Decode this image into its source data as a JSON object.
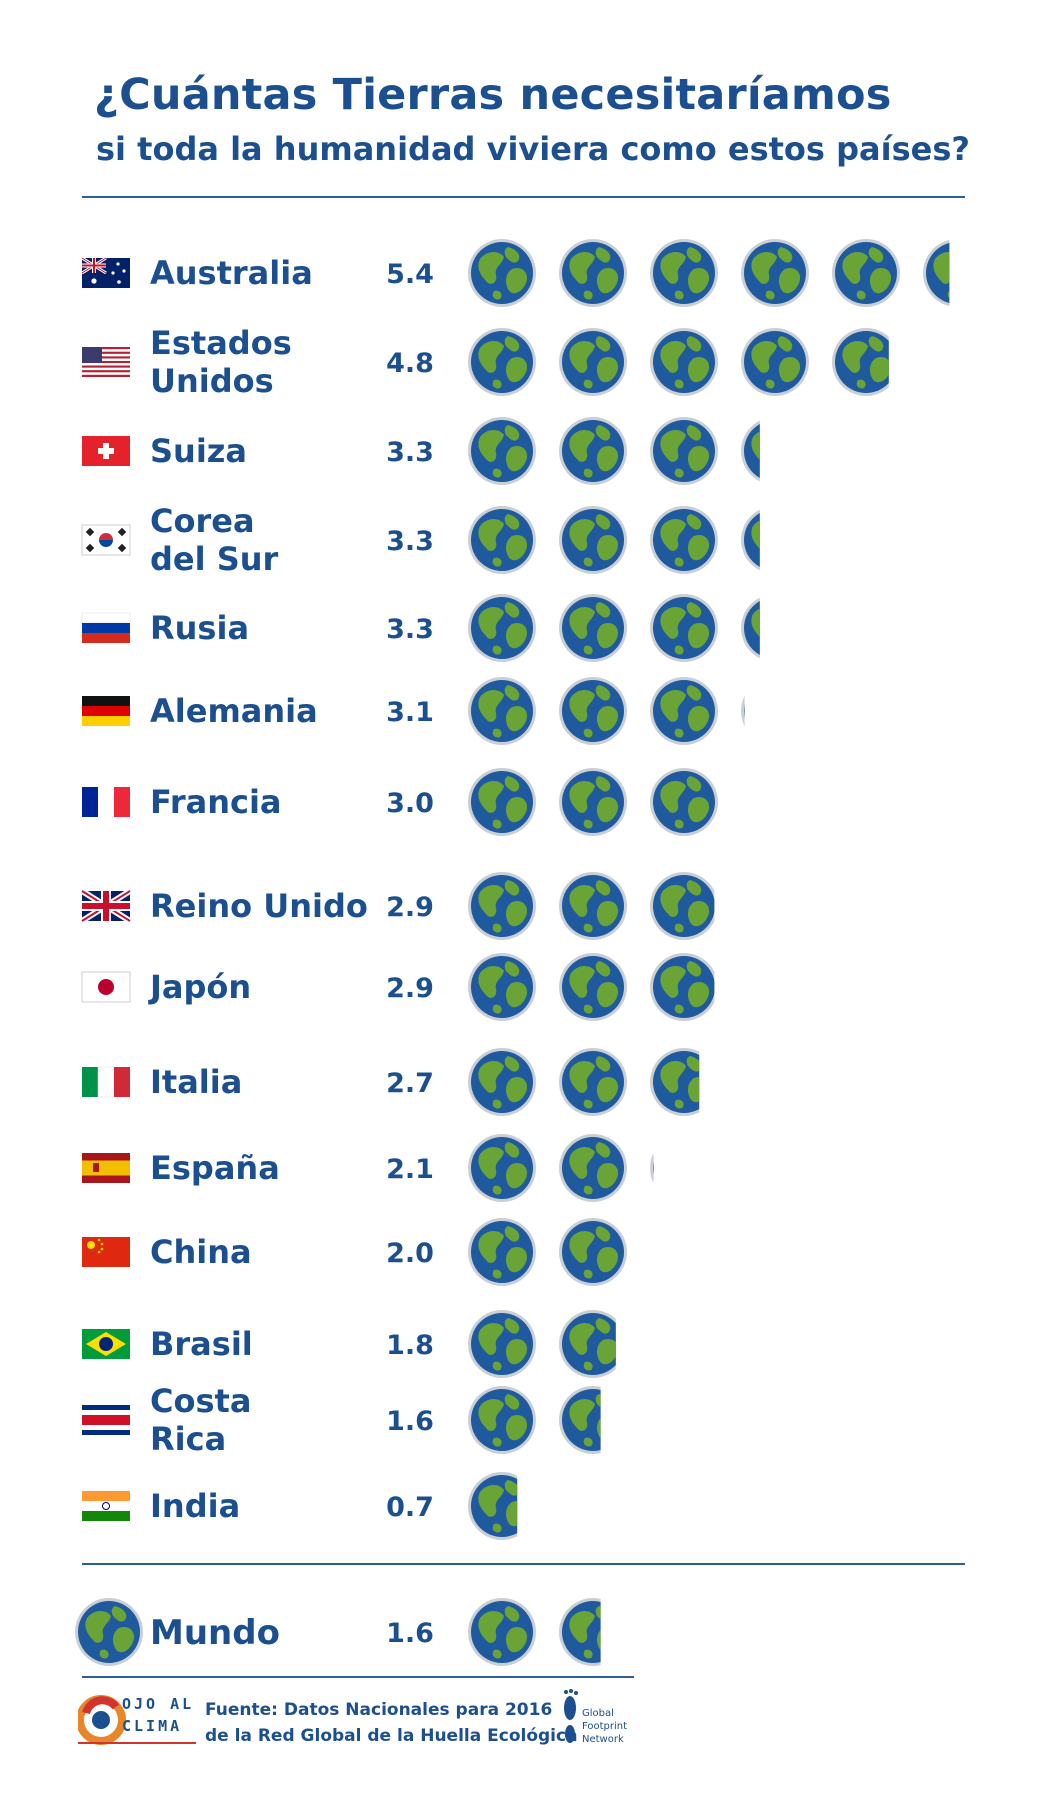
{
  "title": {
    "line1": "¿Cuántas Tierras necesitaríamos",
    "line2": "si toda la humanidad viviera como estos países?"
  },
  "colors": {
    "text": "#1b4f8f",
    "ocean": "#1f5a9e",
    "land": "#6aa336",
    "rim": "#c9cfd5",
    "rule": "#2d5f95"
  },
  "chart_data": {
    "type": "bar",
    "categories": [
      "Australia",
      "Estados Unidos",
      "Suiza",
      "Corea del Sur",
      "Rusia",
      "Alemania",
      "Francia",
      "Reino Unido",
      "Japón",
      "Italia",
      "España",
      "China",
      "Brasil",
      "Costa Rica",
      "India"
    ],
    "label_lines": [
      [
        "Australia"
      ],
      [
        "Estados",
        "Unidos"
      ],
      [
        "Suiza"
      ],
      [
        "Corea",
        "del Sur"
      ],
      [
        "Rusia"
      ],
      [
        "Alemania"
      ],
      [
        "Francia"
      ],
      [
        "Reino Unido"
      ],
      [
        "Japón"
      ],
      [
        "Italia"
      ],
      [
        "España"
      ],
      [
        "China"
      ],
      [
        "Brasil"
      ],
      [
        "Costa",
        "Rica"
      ],
      [
        "India"
      ]
    ],
    "flags": [
      "australia-flag",
      "usa-flag",
      "switzerland-flag",
      "south-korea-flag",
      "russia-flag",
      "germany-flag",
      "france-flag",
      "uk-flag",
      "japan-flag",
      "italy-flag",
      "spain-flag",
      "china-flag",
      "brazil-flag",
      "costa-rica-flag",
      "india-flag"
    ],
    "values": [
      5.4,
      4.8,
      3.3,
      3.3,
      3.3,
      3.1,
      3.0,
      2.9,
      2.9,
      2.7,
      2.1,
      2.0,
      1.8,
      1.6,
      0.7
    ],
    "value_labels": [
      "5.4",
      "4.8",
      "3.3",
      "3.3",
      "3.3",
      "3.1",
      "3.0",
      "2.9",
      "2.9",
      "2.7",
      "2.1",
      "2.0",
      "1.8",
      "1.6",
      "0.7"
    ],
    "unit": "earth-icon",
    "world": {
      "label": "Mundo",
      "value": 1.6,
      "value_label": "1.6"
    }
  },
  "footer": {
    "source_line1": "Fuente: Datos Nacionales para 2016",
    "source_line2": "de la Red Global de la Huella Ecológica",
    "logo_left": [
      "OJO AL",
      "CLIMA"
    ],
    "logo_right": [
      "Global",
      "Footprint",
      "Network"
    ]
  }
}
